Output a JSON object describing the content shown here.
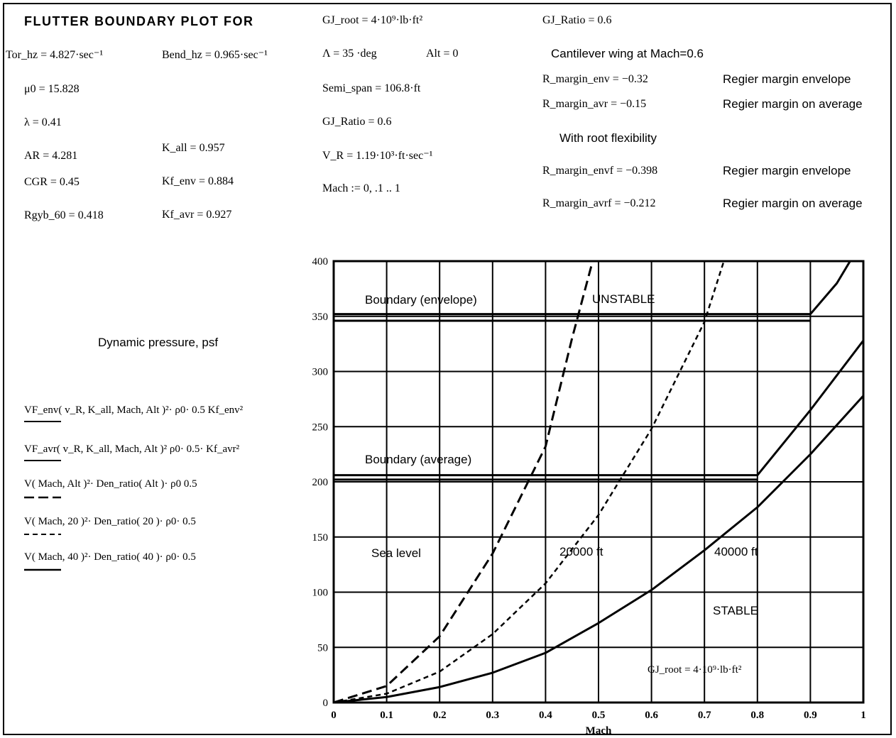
{
  "header": {
    "title": "FLUTTER BOUNDARY PLOT FOR",
    "gj_root": "GJ_root = 4·10⁹·lb·ft²",
    "gj_ratio_top": "GJ_Ratio = 0.6"
  },
  "params": {
    "tor_hz": "Tor_hz = 4.827·sec⁻¹",
    "bend_hz": "Bend_hz = 0.965·sec⁻¹",
    "mu0": "μ0 = 15.828",
    "lambda": "λ = 0.41",
    "ar": "AR = 4.281",
    "k_all": "K_all = 0.957",
    "cgr": "CGR = 0.45",
    "kf_env": "Kf_env = 0.884",
    "rgyb": "Rgyb_60 = 0.418",
    "kf_avr": "Kf_avr = 0.927",
    "sweep": "Λ = 35 ·deg",
    "alt": "Alt = 0",
    "semi_span": "Semi_span = 106.8·ft",
    "gj_ratio": "GJ_Ratio = 0.6",
    "v_r": "V_R = 1.19·10³·ft·sec⁻¹",
    "mach_range": "Mach := 0, .1 .. 1"
  },
  "margins": {
    "cantilever": "Cantilever wing at Mach=0.6",
    "r_env": "R_margin_env = −0.32",
    "r_env_desc": "Regier margin envelope",
    "r_avr": "R_margin_avr = −0.15",
    "r_avr_desc": "Regier margin on average",
    "root_flex": "With root flexibility",
    "r_envf": "R_margin_envf = −0.398",
    "r_envf_desc": "Regier margin envelope",
    "r_avrf": "R_margin_avrf = −0.212",
    "r_avrf_desc": "Regier margin on average"
  },
  "legend": {
    "dynamic_pressure": "Dynamic pressure, psf",
    "items": [
      "VF_env( v_R, K_all, Mach, Alt )²· ρ0· 0.5 Kf_env²",
      "VF_avr( v_R, K_all, Mach, Alt )² ρ0· 0.5· Kf_avr²",
      "V( Mach, Alt )²· Den_ratio( Alt )· ρ0 0.5",
      "V( Mach, 20 )²· Den_ratio( 20 )· ρ0· 0.5",
      "V( Mach, 40 )²· Den_ratio( 40 )· ρ0· 0.5"
    ]
  },
  "annotations": {
    "boundary_envelope": "Boundary (envelope)",
    "unstable": "UNSTABLE",
    "boundary_average": "Boundary (average)",
    "sea_level": "Sea level",
    "ft20000": "20000 ft",
    "ft40000": "40000 ft",
    "stable": "STABLE",
    "gj_root_plot": "GJ_root = 4·10⁹·lb·ft²"
  },
  "chart_data": {
    "type": "line",
    "xlabel": "Mach",
    "ylabel": "",
    "xlim": [
      0,
      1
    ],
    "ylim": [
      0,
      400
    ],
    "x_ticks": [
      "0",
      "0.1",
      "0.2",
      "0.3",
      "0.4",
      "0.5",
      "0.6",
      "0.7",
      "0.8",
      "0.9",
      "1"
    ],
    "y_ticks": [
      "0",
      "50",
      "100",
      "150",
      "200",
      "250",
      "300",
      "350",
      "400"
    ],
    "grid": true,
    "series": [
      {
        "style": "solid",
        "x": [
          0,
          0.9,
          0.9,
          0.95,
          1.0
        ],
        "y": [
          352,
          352,
          352,
          380,
          420
        ]
      },
      {
        "style": "solid",
        "x": [
          0,
          0.9
        ],
        "y": [
          346,
          346
        ]
      },
      {
        "style": "solid",
        "x": [
          0,
          0.8,
          0.9,
          1.0
        ],
        "y": [
          206,
          206,
          265,
          328
        ]
      },
      {
        "style": "solid",
        "x": [
          0,
          0.8
        ],
        "y": [
          202,
          202
        ]
      },
      {
        "style": "long-dash",
        "x": [
          0,
          0.1,
          0.2,
          0.3,
          0.4,
          0.45,
          0.5
        ],
        "y": [
          0,
          15,
          60,
          135,
          232,
          330,
          420
        ]
      },
      {
        "style": "short-dash",
        "x": [
          0,
          0.1,
          0.2,
          0.3,
          0.4,
          0.5,
          0.6,
          0.7,
          0.75
        ],
        "y": [
          0,
          8,
          28,
          62,
          108,
          170,
          248,
          345,
          420
        ]
      },
      {
        "style": "solid",
        "x": [
          0,
          0.1,
          0.2,
          0.3,
          0.4,
          0.5,
          0.6,
          0.7,
          0.8,
          0.9,
          1.0
        ],
        "y": [
          0,
          5,
          14,
          27,
          45,
          72,
          102,
          138,
          177,
          225,
          278
        ]
      }
    ]
  }
}
